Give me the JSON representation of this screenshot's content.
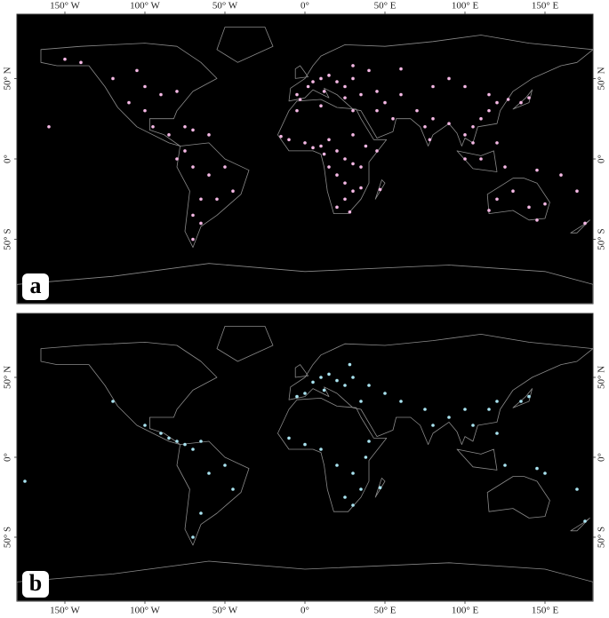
{
  "chart_data": [
    {
      "type": "map",
      "label": "a",
      "color": "#f4b8e4",
      "xlim": [
        -180,
        180
      ],
      "ylim": [
        -90,
        90
      ],
      "xticks": [
        {
          "value": -150,
          "label": "150° W"
        },
        {
          "value": -100,
          "label": "100° W"
        },
        {
          "value": -50,
          "label": "50° W"
        },
        {
          "value": 0,
          "label": "0°"
        },
        {
          "value": 50,
          "label": "50° E"
        },
        {
          "value": 100,
          "label": "100° E"
        },
        {
          "value": 150,
          "label": "150° E"
        }
      ],
      "yticks": [
        {
          "value": -50,
          "label": "50° S"
        },
        {
          "value": 0,
          "label": "0°"
        },
        {
          "value": 50,
          "label": "50° N"
        }
      ],
      "x": [
        10,
        5,
        15,
        20,
        25,
        30,
        2,
        -5,
        -3,
        12,
        25,
        35,
        40,
        30,
        60,
        45,
        0,
        -10,
        -15,
        5,
        10,
        15,
        20,
        25,
        30,
        35,
        38,
        45,
        30,
        20,
        25,
        30,
        25,
        20,
        28,
        35,
        15,
        12,
        -5,
        10,
        30,
        47,
        70,
        75,
        78,
        80,
        90,
        100,
        105,
        110,
        115,
        120,
        127,
        135,
        140,
        60,
        80,
        90,
        100,
        115,
        55,
        45,
        50,
        105,
        110,
        120,
        125,
        100,
        145,
        175,
        170,
        160,
        120,
        130,
        140,
        150,
        145,
        115,
        -120,
        -100,
        -90,
        -80,
        -110,
        -100,
        -95,
        -85,
        -75,
        -70,
        -60,
        -75,
        -70,
        -60,
        -50,
        -45,
        -55,
        -65,
        -70,
        -65,
        -70,
        -80,
        -140,
        -150,
        -105,
        -160
      ],
      "y": [
        50,
        48,
        52,
        48,
        45,
        50,
        45,
        40,
        37,
        42,
        38,
        40,
        55,
        58,
        56,
        42,
        10,
        12,
        14,
        7,
        8,
        12,
        5,
        0,
        -3,
        -5,
        8,
        5,
        15,
        -10,
        -15,
        -20,
        -25,
        -30,
        -33,
        -18,
        -5,
        3,
        30,
        33,
        30,
        -19,
        30,
        20,
        12,
        25,
        22,
        15,
        20,
        25,
        30,
        35,
        37,
        35,
        38,
        40,
        45,
        50,
        45,
        40,
        25,
        30,
        35,
        10,
        0,
        10,
        -5,
        0,
        -7,
        -40,
        -20,
        -10,
        -25,
        -20,
        -30,
        -28,
        -38,
        -32,
        50,
        45,
        40,
        42,
        35,
        30,
        20,
        15,
        20,
        18,
        15,
        5,
        -5,
        -10,
        -5,
        -20,
        -25,
        -25,
        -35,
        -40,
        -50,
        0,
        60,
        62,
        55,
        20
      ]
    },
    {
      "type": "map",
      "label": "b",
      "color": "#a9e3f0",
      "xlim": [
        -180,
        180
      ],
      "ylim": [
        -90,
        90
      ],
      "xticks": [
        {
          "value": -150,
          "label": "150° W"
        },
        {
          "value": -100,
          "label": "100° W"
        },
        {
          "value": -50,
          "label": "50° W"
        },
        {
          "value": 0,
          "label": "0°"
        },
        {
          "value": 50,
          "label": "50° E"
        },
        {
          "value": 100,
          "label": "100° E"
        },
        {
          "value": 150,
          "label": "150° E"
        }
      ],
      "yticks": [
        {
          "value": -50,
          "label": "50° S"
        },
        {
          "value": 0,
          "label": "0°"
        },
        {
          "value": 50,
          "label": "50° N"
        }
      ],
      "x": [
        10,
        15,
        20,
        25,
        5,
        30,
        12,
        0,
        -5,
        35,
        40,
        28,
        50,
        60,
        75,
        80,
        90,
        100,
        105,
        115,
        120,
        135,
        140,
        -10,
        0,
        10,
        20,
        30,
        35,
        38,
        25,
        30,
        47,
        40,
        -100,
        -90,
        -85,
        -80,
        -75,
        -65,
        -70,
        -60,
        -50,
        -45,
        -65,
        -70,
        -120,
        125,
        150,
        170,
        175,
        145,
        120,
        -175
      ],
      "y": [
        50,
        52,
        48,
        45,
        47,
        50,
        42,
        40,
        38,
        35,
        45,
        58,
        40,
        35,
        30,
        20,
        25,
        30,
        20,
        30,
        35,
        35,
        38,
        12,
        8,
        5,
        -5,
        -10,
        -20,
        0,
        -25,
        -30,
        -19,
        10,
        20,
        15,
        12,
        10,
        8,
        10,
        5,
        -10,
        -5,
        -20,
        -35,
        -50,
        35,
        -5,
        -10,
        -20,
        -40,
        -7,
        15,
        -15
      ]
    }
  ]
}
